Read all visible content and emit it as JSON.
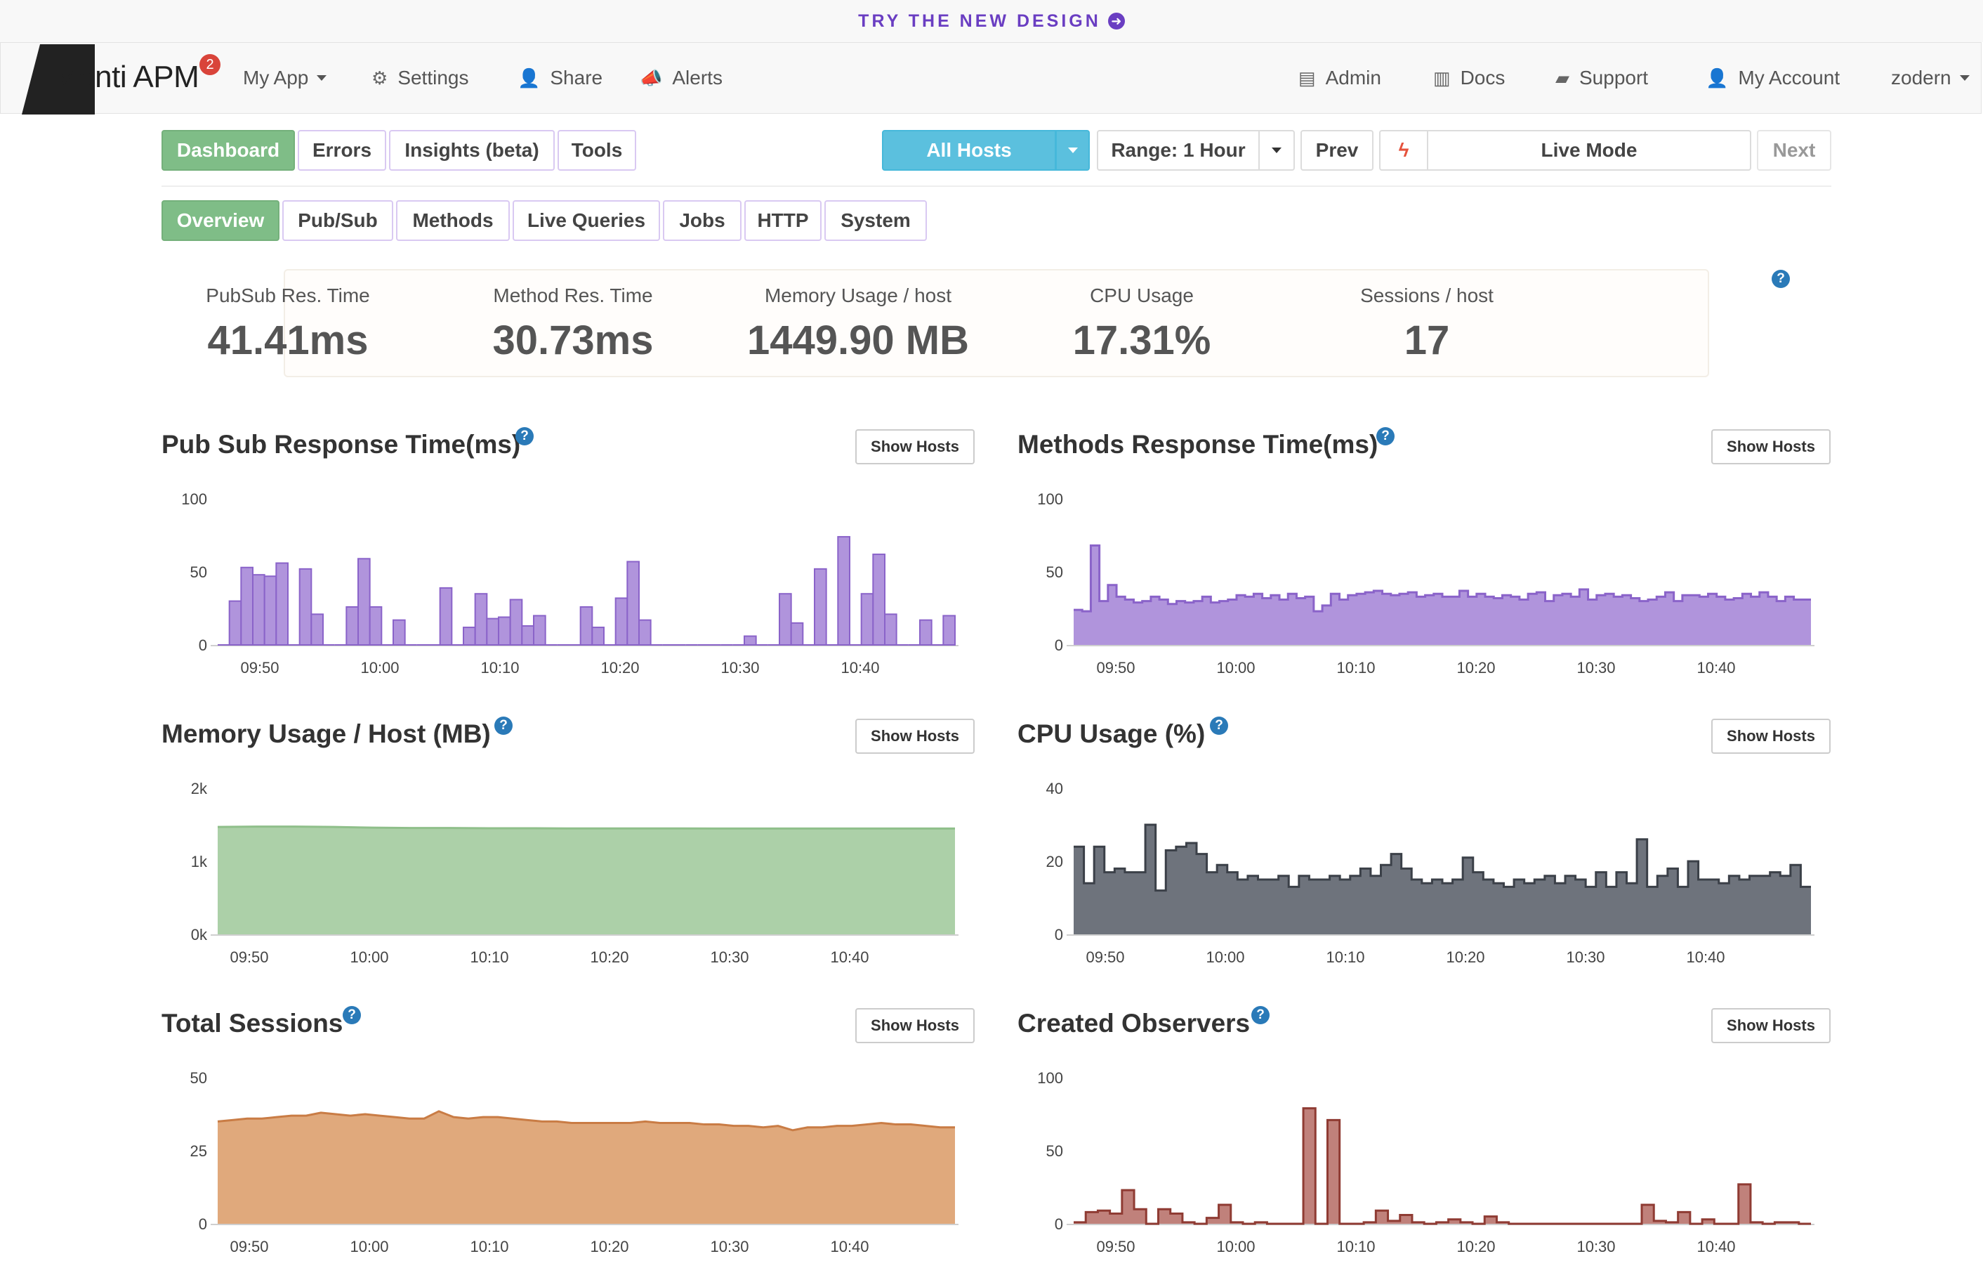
{
  "banner": {
    "text": "TRY THE NEW DESIGN",
    "icon": "arrow-circle-right-icon"
  },
  "navbar": {
    "logo": "Monti APM",
    "badge": "2",
    "app": "My App",
    "settings": "Settings",
    "share": "Share",
    "alerts": "Alerts",
    "admin": "Admin",
    "docs": "Docs",
    "support": "Support",
    "account": "My Account",
    "user": "zodern"
  },
  "toolbar": {
    "tabs": [
      "Dashboard",
      "Errors",
      "Insights (beta)",
      "Tools"
    ],
    "active_tab": "Dashboard",
    "hosts": "All Hosts",
    "range": "Range: 1 Hour",
    "prev": "Prev",
    "live": "Live Mode",
    "next": "Next"
  },
  "subtabs": [
    "Overview",
    "Pub/Sub",
    "Methods",
    "Live Queries",
    "Jobs",
    "HTTP",
    "System"
  ],
  "active_subtab": "Overview",
  "stats": [
    {
      "label": "PubSub Res. Time",
      "value": "41.41ms"
    },
    {
      "label": "Method Res. Time",
      "value": "30.73ms"
    },
    {
      "label": "Memory Usage / host",
      "value": "1449.90 MB"
    },
    {
      "label": "CPU Usage",
      "value": "17.31%"
    },
    {
      "label": "Sessions / host",
      "value": "17"
    }
  ],
  "show_hosts_label": "Show Hosts",
  "colors": {
    "purple": "#b094dc",
    "purple_line": "#8a63c9",
    "green": "#acd0a8",
    "green_line": "#8fbf8a",
    "slate": "#6e737c",
    "slate_line": "#3b4048",
    "orange": "#e0a97c",
    "orange_line": "#c97c45",
    "red": "#c0817b",
    "red_line": "#8f3b33"
  },
  "chart_data": [
    {
      "title": "Pub Sub Response Time(ms)",
      "type": "bar",
      "ylim": [
        0,
        100
      ],
      "yticks": [
        "0",
        "50",
        "100"
      ],
      "xticks": [
        "09:50",
        "10:00",
        "10:10",
        "10:20",
        "10:30",
        "10:40"
      ],
      "values": [
        0,
        30,
        53,
        48,
        47,
        56,
        0,
        52,
        21,
        0,
        0,
        26,
        59,
        26,
        0,
        17,
        0,
        0,
        0,
        39,
        0,
        12,
        35,
        18,
        19,
        31,
        13,
        20,
        0,
        0,
        0,
        26,
        12,
        0,
        32,
        57,
        17,
        0,
        0,
        0,
        0,
        0,
        0,
        0,
        0,
        6,
        0,
        0,
        35,
        15,
        0,
        52,
        0,
        74,
        0,
        35,
        62,
        21,
        0,
        0,
        17,
        0,
        20
      ]
    },
    {
      "title": "Methods Response Time(ms)",
      "type": "area-step",
      "ylim": [
        0,
        100
      ],
      "yticks": [
        "0",
        "50",
        "100"
      ],
      "xticks": [
        "09:50",
        "10:00",
        "10:10",
        "10:20",
        "10:30",
        "10:40"
      ],
      "values": [
        24,
        23,
        68,
        30,
        41,
        33,
        31,
        29,
        30,
        33,
        31,
        28,
        30,
        29,
        30,
        33,
        29,
        30,
        31,
        34,
        33,
        35,
        32,
        34,
        31,
        35,
        32,
        33,
        23,
        27,
        35,
        31,
        34,
        35,
        36,
        37,
        35,
        34,
        35,
        36,
        33,
        34,
        35,
        33,
        33,
        37,
        33,
        35,
        33,
        32,
        34,
        33,
        31,
        35,
        36,
        30,
        34,
        35,
        33,
        38,
        31,
        34,
        35,
        33,
        34,
        32,
        30,
        31,
        33,
        36,
        30,
        34,
        34,
        33,
        35,
        33,
        31,
        32,
        35,
        33,
        36,
        33,
        30,
        33,
        31,
        31
      ]
    },
    {
      "title": "Memory Usage / Host (MB)",
      "type": "area",
      "ylim": [
        0,
        2000
      ],
      "yticks": [
        "0k",
        "1k",
        "2k"
      ],
      "xticks": [
        "09:50",
        "10:00",
        "10:10",
        "10:20",
        "10:30",
        "10:40"
      ],
      "values": [
        1470,
        1475,
        1475,
        1470,
        1460,
        1455,
        1455,
        1452,
        1452,
        1450,
        1450,
        1450,
        1450,
        1448,
        1448,
        1448,
        1448,
        1448,
        1448,
        1448
      ]
    },
    {
      "title": "CPU Usage (%)",
      "type": "area-step",
      "ylim": [
        0,
        40
      ],
      "yticks": [
        "0",
        "20",
        "40"
      ],
      "xticks": [
        "09:50",
        "10:00",
        "10:10",
        "10:20",
        "10:30",
        "10:40"
      ],
      "values": [
        24,
        14,
        24,
        17,
        18,
        17,
        17,
        30,
        12,
        23,
        24,
        25,
        22,
        17,
        19,
        17,
        15,
        16,
        15,
        15,
        16,
        13,
        16,
        15,
        15,
        16,
        15,
        16,
        18,
        16,
        19,
        22,
        18,
        15,
        14,
        15,
        14,
        15,
        21,
        17,
        15,
        14,
        13,
        15,
        14,
        15,
        16,
        14,
        16,
        15,
        13,
        17,
        13,
        17,
        14,
        26,
        13,
        16,
        18,
        13,
        20,
        15,
        15,
        14,
        16,
        15,
        16,
        16,
        17,
        16,
        19,
        13
      ]
    },
    {
      "title": "Total Sessions",
      "type": "area",
      "ylim": [
        0,
        50
      ],
      "yticks": [
        "0",
        "25",
        "50"
      ],
      "xticks": [
        "09:50",
        "10:00",
        "10:10",
        "10:20",
        "10:30",
        "10:40"
      ],
      "values": [
        35,
        35.5,
        36,
        36,
        36.5,
        37,
        37,
        38,
        37.5,
        37,
        37.5,
        37,
        36.5,
        36,
        36,
        38.5,
        36.5,
        36,
        36.5,
        36.5,
        36,
        35.5,
        35,
        35,
        34.5,
        34.5,
        34.5,
        34.5,
        34.5,
        35,
        34.5,
        34.5,
        34.5,
        34,
        34,
        33.5,
        33.5,
        33,
        33.5,
        32,
        33,
        33,
        33.5,
        33.5,
        34,
        34.5,
        34,
        34,
        33.5,
        33,
        33
      ]
    },
    {
      "title": "Created Observers",
      "type": "area-step",
      "ylim": [
        0,
        100
      ],
      "yticks": [
        "0",
        "50",
        "100"
      ],
      "xticks": [
        "09:50",
        "10:00",
        "10:10",
        "10:20",
        "10:30",
        "10:40"
      ],
      "values": [
        1,
        8,
        9,
        7,
        23,
        10,
        0,
        10,
        7,
        1,
        0,
        4,
        13,
        1,
        0,
        1,
        0,
        0,
        0,
        79,
        0,
        71,
        0,
        0,
        1,
        9,
        2,
        6,
        1,
        0,
        1,
        3,
        1,
        0,
        5,
        1,
        0,
        0,
        0,
        0,
        0,
        0,
        0,
        0,
        0,
        0,
        0,
        13,
        2,
        1,
        8,
        0,
        3,
        0,
        0,
        27,
        1,
        0,
        1,
        1,
        0
      ]
    }
  ]
}
